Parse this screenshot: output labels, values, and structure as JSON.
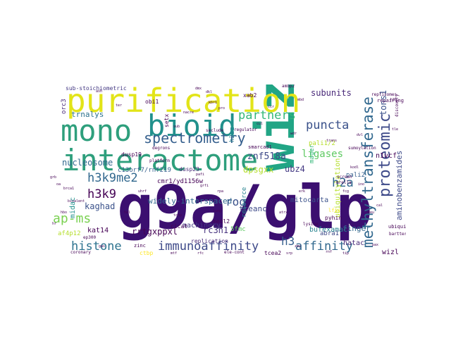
{
  "words": [
    {
      "text": "g9a/glp",
      "color": "#3b0f70"
    },
    {
      "text": "wiz",
      "color": "#21a585"
    },
    {
      "text": "purification",
      "color": "#e2e418"
    },
    {
      "text": "interactome",
      "color": "#2e9f7c"
    },
    {
      "text": "bioid",
      "color": "#21918c"
    },
    {
      "text": "mono",
      "color": "#2e9f7c"
    },
    {
      "text": "methyltransferase",
      "color": "#31688e"
    },
    {
      "text": "proteomic",
      "color": "#3e4a89"
    },
    {
      "text": "spectrometry",
      "color": "#355f8d"
    },
    {
      "text": "immunoaffinity",
      "color": "#3e4a89"
    },
    {
      "text": "affinity",
      "color": "#31688e"
    },
    {
      "text": "histone",
      "color": "#2c728e"
    },
    {
      "text": "h3k9me2",
      "color": "#31688e"
    },
    {
      "text": "partners",
      "color": "#35b779"
    },
    {
      "text": "puncta",
      "color": "#3b528b"
    },
    {
      "text": "ap-ms",
      "color": "#7ad151"
    },
    {
      "text": "h3k9",
      "color": "#440154"
    },
    {
      "text": "h2a",
      "color": "#31688e"
    },
    {
      "text": "h3",
      "color": "#355f8d"
    },
    {
      "text": "ligases",
      "color": "#5ec962"
    },
    {
      "text": "znf518a",
      "color": "#3e4a89"
    },
    {
      "text": "ubz4",
      "color": "#443983"
    },
    {
      "text": "subunits",
      "color": "#482878"
    },
    {
      "text": "tons1",
      "color": "#3b528b"
    },
    {
      "text": "finger",
      "color": "#31688e"
    },
    {
      "text": "nucleosome",
      "color": "#31688e"
    },
    {
      "text": "trnalys",
      "color": "#2c728e"
    },
    {
      "text": "kaghad",
      "color": "#3b528b"
    },
    {
      "text": "dpsgxx",
      "color": "#b5de2b"
    },
    {
      "text": "roq",
      "color": "#3b528b"
    },
    {
      "text": "tceanc",
      "color": "#3e4a89"
    },
    {
      "text": "rrtgxppxl",
      "color": "#440154"
    },
    {
      "text": "rc3h1",
      "color": "#46327e"
    },
    {
      "text": "aminobenzamides",
      "color": "#3e4a89"
    },
    {
      "text": "widely-interspaced",
      "color": "#31688e"
    },
    {
      "text": "machinery",
      "color": "#443983"
    },
    {
      "text": "mitocarta",
      "color": "#3b528b"
    },
    {
      "text": "ubiquitylation",
      "color": "#b5de2b"
    },
    {
      "text": "sub-stoichiometric",
      "color": "#443983"
    },
    {
      "text": "c13orf7/rnf219",
      "color": "#355f8d"
    },
    {
      "text": "cmr1/yd1156w",
      "color": "#440154"
    },
    {
      "text": "kat14",
      "color": "#440154"
    },
    {
      "text": "af4p12",
      "color": "#b5de2b"
    },
    {
      "text": "midac",
      "color": "#21918c"
    },
    {
      "text": "bufexamac",
      "color": "#26828e"
    },
    {
      "text": "hatac",
      "color": "#482878"
    },
    {
      "text": "wizl",
      "color": "#440154"
    },
    {
      "text": "abra1",
      "color": "#3e4a89"
    },
    {
      "text": "5fmc",
      "color": "#5ec962"
    },
    {
      "text": "n1vcf",
      "color": "#440154"
    },
    {
      "text": "orc3",
      "color": "#482878"
    },
    {
      "text": "mager",
      "color": "#35b779"
    },
    {
      "text": "xab2",
      "color": "#440154"
    },
    {
      "text": "pali2",
      "color": "#355f8d"
    },
    {
      "text": "pali1/2",
      "color": "#b5de2b"
    },
    {
      "text": "dusp23",
      "color": "#482878"
    },
    {
      "text": "setx",
      "color": "#440154"
    },
    {
      "text": "obi1",
      "color": "#440154"
    },
    {
      "text": "h2az",
      "color": "#26828e"
    },
    {
      "text": "medl2",
      "color": "#440154"
    },
    {
      "text": "cicat",
      "color": "#440154"
    },
    {
      "text": "ctbp",
      "color": "#fde725"
    },
    {
      "text": "tcea2",
      "color": "#440154"
    },
    {
      "text": "dusp19",
      "color": "#440154"
    },
    {
      "text": "resource",
      "color": "#26828e"
    },
    {
      "text": "pyhin",
      "color": "#440154"
    },
    {
      "text": "replication",
      "color": "#482878"
    },
    {
      "text": "ubiquitin",
      "color": "#440154"
    },
    {
      "text": "zinc",
      "color": "#440154"
    },
    {
      "text": "repairing",
      "color": "#440154"
    },
    {
      "text": "smarcad1",
      "color": "#440154"
    },
    {
      "text": "lfix",
      "color": "#fde725"
    },
    {
      "text": "mrella",
      "color": "#440154"
    },
    {
      "text": "seclude",
      "color": "#440154"
    },
    {
      "text": "regulator",
      "color": "#440154"
    },
    {
      "text": "ambp2",
      "color": "#440154"
    },
    {
      "text": "replisomes",
      "color": "#440154"
    },
    {
      "text": "discovery",
      "color": "#440154"
    },
    {
      "text": "degrons",
      "color": "#440154"
    },
    {
      "text": "platform",
      "color": "#440154"
    },
    {
      "text": "sumoylation",
      "color": "#440154"
    },
    {
      "text": "bartter",
      "color": "#440154"
    },
    {
      "text": "lysine",
      "color": "#440154"
    },
    {
      "text": "ep300",
      "color": "#440154"
    },
    {
      "text": "coronary",
      "color": "#440154"
    },
    {
      "text": "ele-cont",
      "color": "#440154"
    },
    {
      "text": "screen",
      "color": "#440154"
    },
    {
      "text": "dmx",
      "color": "#440154"
    },
    {
      "text": "dkl",
      "color": "#440154"
    },
    {
      "text": "kbr1",
      "color": "#440154"
    },
    {
      "text": "h35",
      "color": "#440154"
    },
    {
      "text": "nacre",
      "color": "#440154"
    },
    {
      "text": "sub",
      "color": "#440154"
    },
    {
      "text": "trans",
      "color": "#440154"
    },
    {
      "text": "kodl",
      "color": "#440154"
    },
    {
      "text": "pafi",
      "color": "#440154"
    },
    {
      "text": "grfi",
      "color": "#440154"
    },
    {
      "text": "rpa",
      "color": "#440154"
    },
    {
      "text": "erk",
      "color": "#440154"
    },
    {
      "text": "brca1",
      "color": "#440154"
    },
    {
      "text": "bivalent",
      "color": "#440154"
    },
    {
      "text": "hal",
      "color": "#440154"
    },
    {
      "text": "tchp",
      "color": "#440154"
    },
    {
      "text": "lung",
      "color": "#440154"
    },
    {
      "text": "atrx",
      "color": "#440154"
    },
    {
      "text": "neu",
      "color": "#440154"
    },
    {
      "text": "cal",
      "color": "#440154"
    },
    {
      "text": "ino",
      "color": "#440154"
    },
    {
      "text": "fcg",
      "color": "#440154"
    },
    {
      "text": "grb",
      "color": "#440154"
    },
    {
      "text": "hr",
      "color": "#440154"
    },
    {
      "text": "oa",
      "color": "#440154"
    },
    {
      "text": "ter",
      "color": "#440154"
    },
    {
      "text": "pro",
      "color": "#440154"
    },
    {
      "text": "ccr",
      "color": "#440154"
    },
    {
      "text": "mbd",
      "color": "#440154"
    },
    {
      "text": "cul",
      "color": "#440154"
    },
    {
      "text": "wdr",
      "color": "#440154"
    },
    {
      "text": "tle",
      "color": "#440154"
    },
    {
      "text": "dvl",
      "color": "#440154"
    },
    {
      "text": "uhrf",
      "color": "#440154"
    },
    {
      "text": "gas",
      "color": "#440154"
    },
    {
      "text": "mtf",
      "color": "#440154"
    },
    {
      "text": "rfc",
      "color": "#440154"
    },
    {
      "text": "srp",
      "color": "#440154"
    },
    {
      "text": "zmy",
      "color": "#440154"
    },
    {
      "text": "rnf",
      "color": "#440154"
    },
    {
      "text": "tip",
      "color": "#440154"
    },
    {
      "text": "pax",
      "color": "#440154"
    },
    {
      "text": "hbo",
      "color": "#440154"
    },
    {
      "text": "ash",
      "color": "#440154"
    }
  ]
}
